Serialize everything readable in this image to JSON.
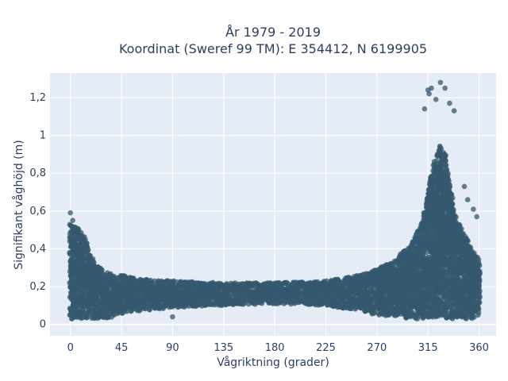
{
  "chart_data": {
    "type": "scatter",
    "title_line1": "År 1979 - 2019",
    "title_line2": "Koordinat (Sweref 99 TM): E 354412, N 6199905",
    "xlabel": "Vågriktning (grader)",
    "ylabel": "Signifikant våghöjd (m)",
    "xlim": [
      -18,
      375
    ],
    "ylim": [
      -0.06,
      1.33
    ],
    "x_ticks": [
      0,
      45,
      90,
      135,
      180,
      225,
      270,
      315,
      360
    ],
    "x_tick_labels": [
      "0",
      "45",
      "90",
      "135",
      "180",
      "225",
      "270",
      "315",
      "360"
    ],
    "y_ticks": [
      0,
      0.2,
      0.4,
      0.6,
      0.8,
      1.0,
      1.2
    ],
    "y_tick_labels": [
      "0",
      "0,2",
      "0,4",
      "0,6",
      "0,8",
      "1",
      "1,2"
    ],
    "grid": true,
    "marker_color": "#34586e",
    "background_color": "#e5ecf6",
    "band_profile": {
      "x": [
        0,
        10,
        20,
        30,
        45,
        60,
        90,
        135,
        180,
        225,
        255,
        270,
        285,
        300,
        310,
        315,
        320,
        325,
        330,
        335,
        340,
        350,
        360
      ],
      "lower": [
        0.03,
        0.03,
        0.03,
        0.03,
        0.05,
        0.07,
        0.09,
        0.1,
        0.11,
        0.1,
        0.07,
        0.05,
        0.04,
        0.03,
        0.03,
        0.03,
        0.03,
        0.03,
        0.03,
        0.03,
        0.03,
        0.03,
        0.03
      ],
      "upper": [
        0.53,
        0.5,
        0.33,
        0.28,
        0.26,
        0.24,
        0.23,
        0.22,
        0.22,
        0.23,
        0.26,
        0.29,
        0.34,
        0.42,
        0.55,
        0.7,
        0.85,
        0.95,
        0.9,
        0.7,
        0.55,
        0.45,
        0.35
      ]
    },
    "outliers": [
      {
        "x": 0,
        "y": 0.59
      },
      {
        "x": 2,
        "y": 0.55
      },
      {
        "x": 315,
        "y": 1.24
      },
      {
        "x": 316,
        "y": 1.22
      },
      {
        "x": 318,
        "y": 1.25
      },
      {
        "x": 326,
        "y": 1.28
      },
      {
        "x": 330,
        "y": 1.25
      },
      {
        "x": 322,
        "y": 1.19
      },
      {
        "x": 312,
        "y": 1.14
      },
      {
        "x": 334,
        "y": 1.17
      },
      {
        "x": 338,
        "y": 1.13
      },
      {
        "x": 350,
        "y": 0.66
      },
      {
        "x": 355,
        "y": 0.61
      },
      {
        "x": 358,
        "y": 0.57
      },
      {
        "x": 347,
        "y": 0.73
      },
      {
        "x": 90,
        "y": 0.04
      },
      {
        "x": 360,
        "y": 0.12
      }
    ]
  }
}
